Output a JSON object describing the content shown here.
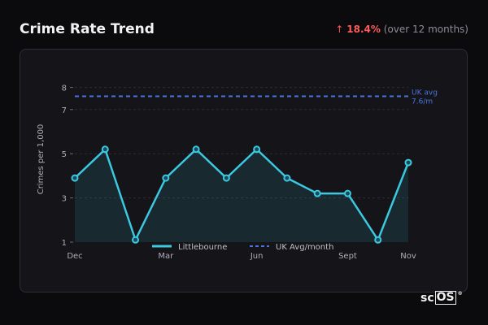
{
  "header": {
    "title": "Crime Rate Trend",
    "change_arrow": "↑",
    "change_pct": "18.4%",
    "change_suffix": "(over 12 months)"
  },
  "brand": {
    "text_a": "sc",
    "text_b": "OS",
    "mark": "®"
  },
  "colors": {
    "series": "#3cc8e0",
    "reference": "#4a74e0",
    "up": "#ff5a5a"
  },
  "chart_data": {
    "type": "line",
    "area_fill": true,
    "ylabel": "Crimes per 1,000",
    "xlabel": "",
    "x_tick_labels": [
      {
        "index": 0,
        "label": "Dec"
      },
      {
        "index": 3,
        "label": "Mar"
      },
      {
        "index": 6,
        "label": "Jun"
      },
      {
        "index": 9,
        "label": "Sept"
      },
      {
        "index": 11,
        "label": "Nov"
      }
    ],
    "yticks": [
      1,
      3,
      5,
      7,
      8
    ],
    "ylim": [
      1,
      8.5
    ],
    "grid": true,
    "series": [
      {
        "name": "Littlebourne",
        "values": [
          3.9,
          5.2,
          1.1,
          3.9,
          5.2,
          3.9,
          5.2,
          3.9,
          3.2,
          3.2,
          1.1,
          4.6
        ]
      }
    ],
    "reference_line": {
      "name": "UK Avg/month",
      "value": 7.6,
      "label_line1": "UK avg",
      "label_line2": "7.6/m"
    },
    "legend_position": "bottom"
  }
}
